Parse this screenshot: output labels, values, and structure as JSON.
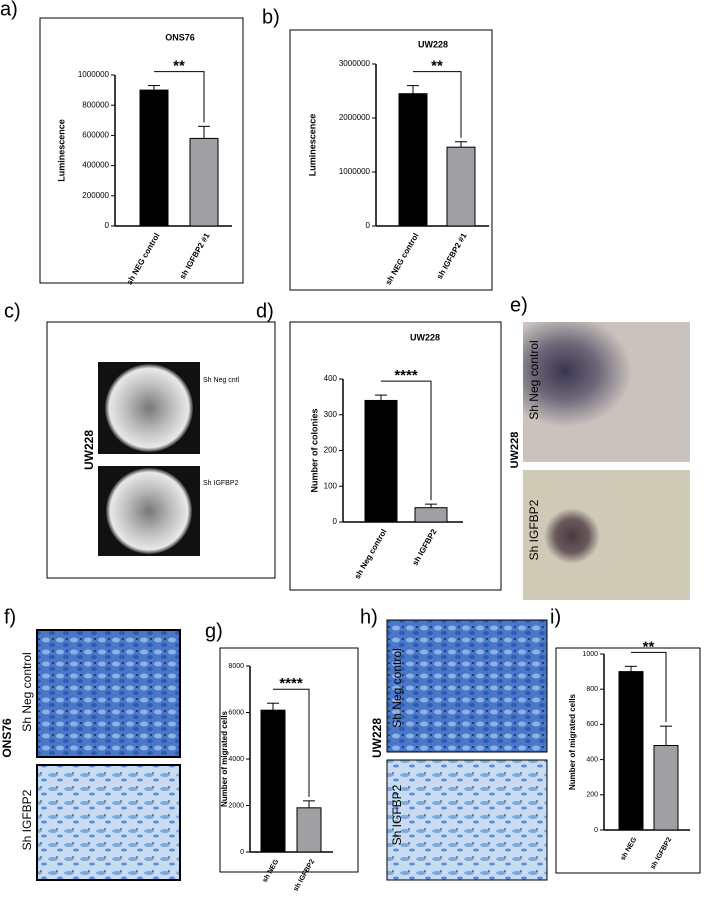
{
  "panel_labels": [
    "a)",
    "b)",
    "c)",
    "d)",
    "e)",
    "f)",
    "g)",
    "h)",
    "i)"
  ],
  "image_labels": {
    "c": {
      "cell_line": "UW228",
      "top": "Sh Neg cntl",
      "bottom": "Sh IGFBP2"
    },
    "e": {
      "cell_line": "UW228",
      "top": "Sh Neg control",
      "bottom": "Sh IGFBP2"
    },
    "f": {
      "cell_line": "ONS76",
      "top": "Sh Neg control",
      "bottom": "Sh IGFBP2"
    },
    "h": {
      "cell_line": "UW228",
      "top": "Sh Neg control",
      "bottom": "Sh IGFBP2"
    }
  },
  "chart_data": [
    {
      "type": "bar",
      "title": "ONS76",
      "y_label": "Luminescence",
      "categories": [
        "sh NEG control",
        "sh IGFBP2 #1"
      ],
      "values": [
        900000,
        580000
      ],
      "errors": [
        30000,
        80000
      ],
      "colors": [
        "#000000",
        "#a0a0a4"
      ],
      "annotation": "**",
      "ylim": [
        0,
        1000000
      ],
      "yticks": [
        0,
        200000,
        400000,
        600000,
        800000,
        1000000
      ]
    },
    {
      "type": "bar",
      "title": "UW228",
      "y_label": "Luminescence",
      "categories": [
        "sh NEG control",
        "sh IGFBP2 #1"
      ],
      "values": [
        2450000,
        1460000
      ],
      "errors": [
        150000,
        100000
      ],
      "colors": [
        "#000000",
        "#a0a0a4"
      ],
      "annotation": "**",
      "ylim": [
        0,
        3000000
      ],
      "yticks": [
        0,
        1000000,
        2000000,
        3000000
      ]
    },
    {
      "type": "bar",
      "title": "UW228",
      "y_label": "Number of colonies",
      "categories": [
        "sh Neg control",
        "sh IGFBP2"
      ],
      "values": [
        340,
        40
      ],
      "errors": [
        15,
        10
      ],
      "colors": [
        "#000000",
        "#a0a0a4"
      ],
      "annotation": "****",
      "ylim": [
        0,
        400
      ],
      "yticks": [
        0,
        100,
        200,
        300,
        400
      ]
    },
    {
      "type": "bar",
      "y_label": "Number of migrated cells",
      "categories": [
        "sh NEG",
        "sh IGFBP2"
      ],
      "values": [
        6100,
        1900
      ],
      "errors": [
        300,
        300
      ],
      "colors": [
        "#000000",
        "#a0a0a4"
      ],
      "annotation": "****",
      "ylim": [
        0,
        8000
      ],
      "yticks": [
        0,
        2000,
        4000,
        6000,
        8000
      ]
    },
    {
      "type": "bar",
      "y_label": "Number of migrated cells",
      "categories": [
        "sh NEG",
        "sh IGFBP2"
      ],
      "values": [
        900,
        480
      ],
      "errors": [
        30,
        110
      ],
      "colors": [
        "#000000",
        "#a0a0a4"
      ],
      "annotation": "**",
      "ylim": [
        0,
        1000
      ],
      "yticks": [
        0,
        200,
        400,
        600,
        800,
        1000
      ]
    }
  ]
}
